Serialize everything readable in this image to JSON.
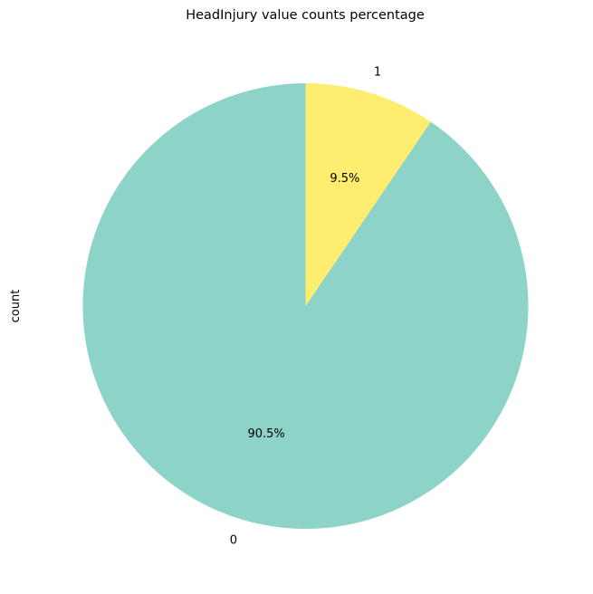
{
  "chart_data": {
    "type": "pie",
    "title": "HeadInjury value counts percentage",
    "ylabel": "count",
    "categories": [
      "0",
      "1"
    ],
    "values": [
      90.5,
      9.5
    ],
    "percent_labels": [
      "90.5%",
      "9.5%"
    ],
    "colors": [
      "#8dd3c7",
      "#ffed6f"
    ],
    "start_angle_deg": 90,
    "direction": "counterclockwise"
  }
}
